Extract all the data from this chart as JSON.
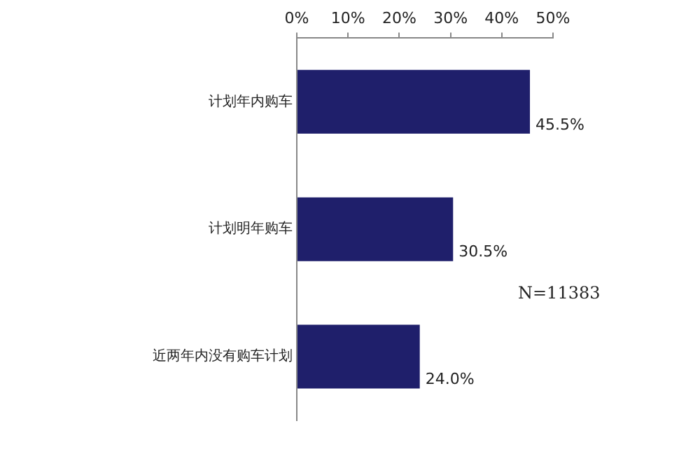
{
  "chart_data": {
    "type": "bar",
    "orientation": "horizontal",
    "categories": [
      "计划年内购车",
      "计划明年购车",
      "近两年内没有购车计划"
    ],
    "values": [
      45.5,
      30.5,
      24.0
    ],
    "value_labels": [
      "45.5%",
      "30.5%",
      "24.0%"
    ],
    "color": "#1f1f6b",
    "xlim": [
      0,
      50
    ],
    "xticks": [
      {
        "value": 0,
        "label": "0%"
      },
      {
        "value": 10,
        "label": "10%"
      },
      {
        "value": 20,
        "label": "20%"
      },
      {
        "value": 30,
        "label": "30%"
      },
      {
        "value": 40,
        "label": "40%"
      },
      {
        "value": 50,
        "label": "50%"
      }
    ],
    "annotations": [
      "N=11383"
    ],
    "grid": false,
    "legend": false
  }
}
